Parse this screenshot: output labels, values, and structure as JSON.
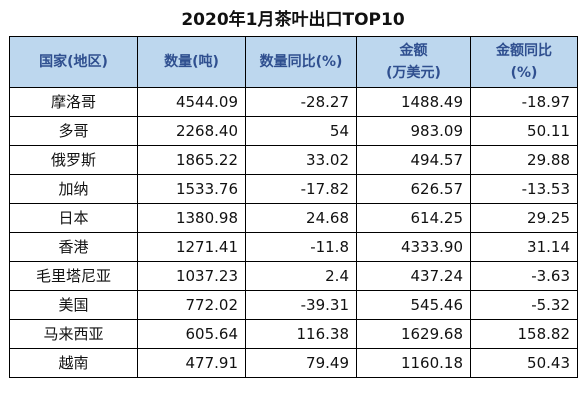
{
  "title": "2020年1月茶叶出口TOP10",
  "headers": [
    {
      "line1": "国家(地区)",
      "line2": ""
    },
    {
      "line1": "数量(吨)",
      "line2": ""
    },
    {
      "line1": "数量同比(%)",
      "line2": ""
    },
    {
      "line1": "金额",
      "line2": "(万美元)"
    },
    {
      "line1": "金额同比",
      "line2": "(%)"
    }
  ],
  "rows": [
    {
      "country": "摩洛哥",
      "quantity": "4544.09",
      "quantity_yoy": "-28.27",
      "amount": "1488.49",
      "amount_yoy": "-18.97"
    },
    {
      "country": "多哥",
      "quantity": "2268.40",
      "quantity_yoy": "54",
      "amount": "983.09",
      "amount_yoy": "50.11"
    },
    {
      "country": "俄罗斯",
      "quantity": "1865.22",
      "quantity_yoy": "33.02",
      "amount": "494.57",
      "amount_yoy": "29.88"
    },
    {
      "country": "加纳",
      "quantity": "1533.76",
      "quantity_yoy": "-17.82",
      "amount": "626.57",
      "amount_yoy": "-13.53"
    },
    {
      "country": "日本",
      "quantity": "1380.98",
      "quantity_yoy": "24.68",
      "amount": "614.25",
      "amount_yoy": "29.25"
    },
    {
      "country": "香港",
      "quantity": "1271.41",
      "quantity_yoy": "-11.8",
      "amount": "4333.90",
      "amount_yoy": "31.14"
    },
    {
      "country": "毛里塔尼亚",
      "quantity": "1037.23",
      "quantity_yoy": "2.4",
      "amount": "437.24",
      "amount_yoy": "-3.63"
    },
    {
      "country": "美国",
      "quantity": "772.02",
      "quantity_yoy": "-39.31",
      "amount": "545.46",
      "amount_yoy": "-5.32"
    },
    {
      "country": "马来西亚",
      "quantity": "605.64",
      "quantity_yoy": "116.38",
      "amount": "1629.68",
      "amount_yoy": "158.82"
    },
    {
      "country": "越南",
      "quantity": "477.91",
      "quantity_yoy": "79.49",
      "amount": "1160.18",
      "amount_yoy": "50.43"
    }
  ],
  "colors": {
    "header_bg": "#bdd7ee",
    "header_text": "#2f4f8f",
    "border": "#000000"
  }
}
